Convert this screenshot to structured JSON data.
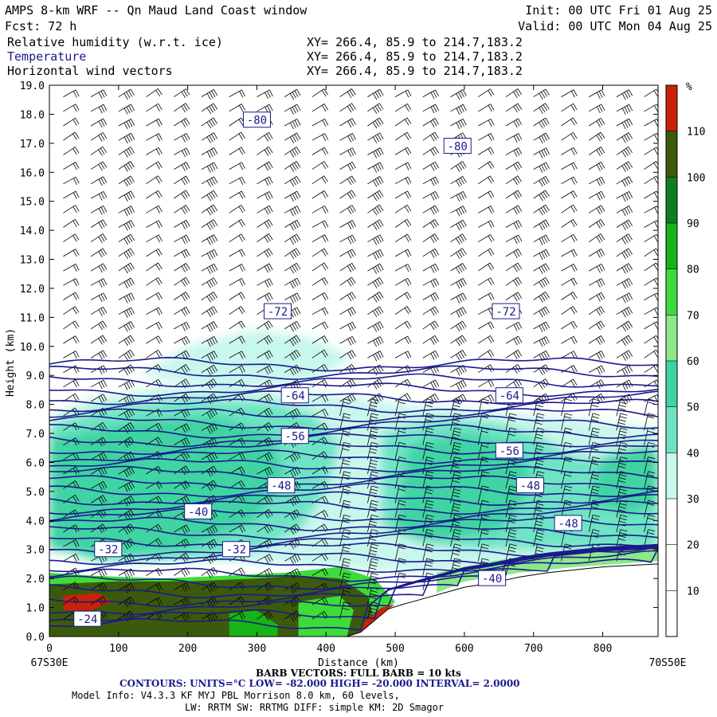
{
  "header": {
    "title": "AMPS 8-km WRF -- Qn Maud Land Coast window",
    "init": "Init: 00 UTC Fri 01 Aug 25",
    "fcst": "Fcst:   72 h",
    "valid": "Valid: 00 UTC Mon 04 Aug 25",
    "fields": [
      {
        "name": "Relative humidity (w.r.t. ice)",
        "xy": "XY= 266.4, 85.9 to 214.7,183.2"
      },
      {
        "name": "Temperature",
        "xy": "XY= 266.4, 85.9 to 214.7,183.2"
      },
      {
        "name": "Horizontal wind vectors",
        "xy": "XY= 266.4, 85.9 to 214.7,183.2"
      }
    ]
  },
  "axes": {
    "ylabel": "Height (km)",
    "xlabel": "Distance (km)",
    "left_point": "67S30E",
    "right_point": "70S50E"
  },
  "colorbar": {
    "unit": "%",
    "levels": [
      "10",
      "20",
      "30",
      "40",
      "50",
      "60",
      "70",
      "80",
      "90",
      "100",
      "110"
    ],
    "colors": [
      "#ffffff",
      "#ffffff",
      "#ffffff",
      "#c8f7ec",
      "#6ee4c4",
      "#3fd3a4",
      "#8ce888",
      "#3edc3a",
      "#16b416",
      "#0e7e24",
      "#3c5a0c",
      "#c8230a"
    ]
  },
  "footer": {
    "barb": "BARB VECTORS: FULL BARB = 10 kts",
    "contours": "CONTOURS:  UNITS=°C  LOW= -82.000      HIGH= -20.000      INTERVAL=   2.0000",
    "model1": "Model Info: V4.3.3   KF      MYJ PBL  Morrison          8.0 km,  60 levels,",
    "model2": "LW: RRTM SW: RRTMG   DIFF: simple KM: 2D Smagor"
  },
  "chart_data": {
    "type": "heatmap",
    "title": "AMPS 8-km WRF -- Qn Maud Land Coast window",
    "xlabel": "Distance (km)",
    "ylabel": "Height (km)",
    "xlim": [
      0,
      880
    ],
    "ylim": [
      0,
      19
    ],
    "x_ticks": [
      0,
      100,
      200,
      300,
      400,
      500,
      600,
      700,
      800
    ],
    "y_ticks": [
      0.0,
      1.0,
      2.0,
      3.0,
      4.0,
      5.0,
      6.0,
      7.0,
      8.0,
      9.0,
      10.0,
      11.0,
      12.0,
      13.0,
      14.0,
      15.0,
      16.0,
      17.0,
      18.0,
      19.0
    ],
    "fill_field": "Relative humidity (w.r.t. ice)",
    "fill_unit": "%",
    "contour_field": "Temperature",
    "contour_unit": "°C",
    "contour_low": -82.0,
    "contour_high": -20.0,
    "contour_interval": 2.0,
    "contour_labels": [
      {
        "value": "-80",
        "x": 300,
        "y": 17.8
      },
      {
        "value": "-80",
        "x": 590,
        "y": 16.9
      },
      {
        "value": "-72",
        "x": 330,
        "y": 11.2
      },
      {
        "value": "-72",
        "x": 660,
        "y": 11.2
      },
      {
        "value": "-64",
        "x": 355,
        "y": 8.3
      },
      {
        "value": "-64",
        "x": 665,
        "y": 8.3
      },
      {
        "value": "-56",
        "x": 355,
        "y": 6.9
      },
      {
        "value": "-56",
        "x": 665,
        "y": 6.4
      },
      {
        "value": "-48",
        "x": 335,
        "y": 5.2
      },
      {
        "value": "-48",
        "x": 695,
        "y": 5.2
      },
      {
        "value": "-48",
        "x": 750,
        "y": 3.9
      },
      {
        "value": "-40",
        "x": 215,
        "y": 4.3
      },
      {
        "value": "-32",
        "x": 85,
        "y": 3.0
      },
      {
        "value": "-32",
        "x": 270,
        "y": 3.0
      },
      {
        "value": "-40",
        "x": 640,
        "y": 2.0
      },
      {
        "value": "-24",
        "x": 55,
        "y": 0.6
      }
    ],
    "terrain": [
      [
        0,
        0.0
      ],
      [
        430,
        0.0
      ],
      [
        450,
        0.15
      ],
      [
        470,
        0.55
      ],
      [
        490,
        0.95
      ],
      [
        510,
        1.1
      ],
      [
        540,
        1.3
      ],
      [
        570,
        1.5
      ],
      [
        600,
        1.7
      ],
      [
        640,
        1.85
      ],
      [
        680,
        2.05
      ],
      [
        720,
        2.2
      ],
      [
        760,
        2.3
      ],
      [
        800,
        2.4
      ],
      [
        880,
        2.5
      ]
    ],
    "vector_field": "Horizontal wind vectors",
    "barb_scale": "FULL BARB = 10 kts"
  }
}
